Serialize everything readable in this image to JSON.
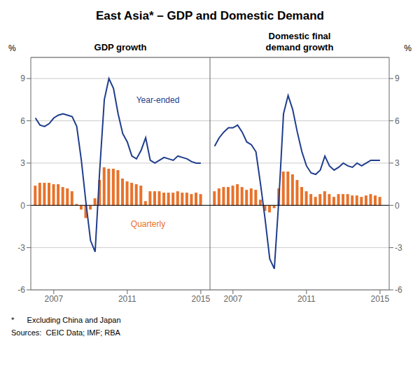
{
  "title": "East Asia* – GDP and Domestic Demand",
  "annotations": [
    "*      Excluding China and Japan",
    "Sources:  CEIC Data; IMF; RBA"
  ],
  "chart_data": [
    {
      "type": "bar",
      "title": "GDP growth",
      "y_label": "%",
      "x": [
        2006.0,
        2006.25,
        2006.5,
        2006.75,
        2007.0,
        2007.25,
        2007.5,
        2007.75,
        2008.0,
        2008.25,
        2008.5,
        2008.75,
        2009.0,
        2009.25,
        2009.5,
        2009.75,
        2010.0,
        2010.25,
        2010.5,
        2010.75,
        2011.0,
        2011.25,
        2011.5,
        2011.75,
        2012.0,
        2012.25,
        2012.5,
        2012.75,
        2013.0,
        2013.25,
        2013.5,
        2013.75,
        2014.0,
        2014.25,
        2014.5,
        2014.75,
        2015.0
      ],
      "series": [
        {
          "type": "bar",
          "color": "#e8722a",
          "values": [
            1.4,
            1.6,
            1.6,
            1.6,
            1.5,
            1.5,
            1.3,
            1.2,
            1.0,
            0.1,
            -0.3,
            -0.9,
            -0.3,
            0.5,
            1.8,
            2.7,
            2.6,
            2.6,
            2.5,
            1.9,
            1.7,
            1.6,
            1.5,
            1.4,
            0.3,
            1.0,
            1.0,
            1.0,
            0.9,
            0.9,
            0.9,
            1.0,
            0.9,
            0.9,
            0.8,
            0.9,
            0.8
          ]
        },
        {
          "type": "line",
          "color": "#1f3d8c",
          "values": [
            6.2,
            5.7,
            5.6,
            5.8,
            6.2,
            6.4,
            6.5,
            6.4,
            6.3,
            5.6,
            3.2,
            0.2,
            -2.5,
            -3.3,
            2.5,
            7.5,
            9.0,
            8.3,
            6.5,
            5.1,
            4.5,
            3.5,
            3.3,
            3.9,
            4.8,
            3.2,
            3.0,
            3.2,
            3.4,
            3.3,
            3.2,
            3.5,
            3.4,
            3.3,
            3.1,
            3.0,
            3.0
          ]
        }
      ],
      "annotations": [
        {
          "text": "Year-ended",
          "x": 2011.3,
          "y": 7.5,
          "color": "#1f3d8c"
        },
        {
          "text": "Quarterly",
          "x": 2011.0,
          "y": -1.3,
          "color": "#e8722a"
        }
      ],
      "xlim": [
        2005.75,
        2015.5
      ],
      "xticks": [
        2007,
        2011,
        2015
      ],
      "ylim": [
        -6,
        10.5
      ],
      "yticks": [
        -6,
        -3,
        0,
        3,
        6,
        9
      ],
      "grid": true
    },
    {
      "type": "bar",
      "title": "Domestic final\ndemand growth",
      "y_label": "%",
      "x": [
        2006.0,
        2006.25,
        2006.5,
        2006.75,
        2007.0,
        2007.25,
        2007.5,
        2007.75,
        2008.0,
        2008.25,
        2008.5,
        2008.75,
        2009.0,
        2009.25,
        2009.5,
        2009.75,
        2010.0,
        2010.25,
        2010.5,
        2010.75,
        2011.0,
        2011.25,
        2011.5,
        2011.75,
        2012.0,
        2012.25,
        2012.5,
        2012.75,
        2013.0,
        2013.25,
        2013.5,
        2013.75,
        2014.0,
        2014.25,
        2014.5,
        2014.75,
        2015.0
      ],
      "series": [
        {
          "type": "bar",
          "color": "#e8722a",
          "values": [
            1.0,
            1.2,
            1.3,
            1.3,
            1.4,
            1.5,
            1.3,
            1.1,
            1.2,
            1.1,
            0.4,
            -0.4,
            -0.5,
            -0.2,
            1.2,
            2.4,
            2.4,
            2.2,
            1.8,
            1.3,
            1.0,
            0.8,
            0.6,
            0.8,
            1.0,
            0.8,
            0.6,
            0.8,
            0.8,
            0.8,
            0.7,
            0.7,
            0.6,
            0.7,
            0.8,
            0.7,
            0.6
          ]
        },
        {
          "type": "line",
          "color": "#1f3d8c",
          "values": [
            4.2,
            4.8,
            5.2,
            5.5,
            5.5,
            5.7,
            5.2,
            4.5,
            4.3,
            3.8,
            1.5,
            -1.0,
            -3.8,
            -4.5,
            0.5,
            6.5,
            7.8,
            6.8,
            5.2,
            3.8,
            2.8,
            2.3,
            2.2,
            2.5,
            3.5,
            2.8,
            2.5,
            2.7,
            3.0,
            2.8,
            2.7,
            3.0,
            2.8,
            3.0,
            3.2,
            3.2,
            3.2
          ]
        }
      ],
      "xlim": [
        2005.75,
        2015.5
      ],
      "xticks": [
        2007,
        2011,
        2015
      ],
      "ylim": [
        -6,
        10.5
      ],
      "yticks": [
        -6,
        -3,
        0,
        3,
        6,
        9
      ],
      "grid": true
    }
  ]
}
